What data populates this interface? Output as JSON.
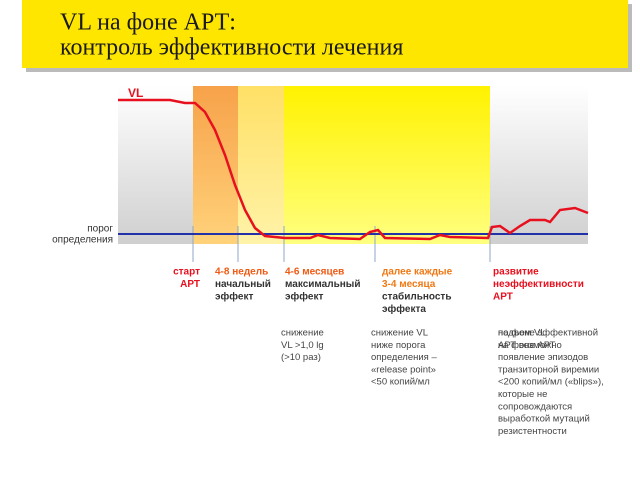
{
  "title": [
    "VL на фоне АРТ:",
    "контроль эффективности лечения"
  ],
  "chart": {
    "y_label": "VL",
    "threshold_label": [
      "порог",
      "определения"
    ]
  },
  "phases": [
    {
      "heading": [
        "старт",
        "АРТ"
      ]
    },
    {
      "heading": [
        "4-8 недель"
      ],
      "subheading": [
        "начальный",
        "эффект"
      ],
      "description": [
        "снижение",
        "VL >1,0 lg",
        "(>10 раз)"
      ]
    },
    {
      "heading": [
        "4-6 месяцев"
      ],
      "subheading": [
        "максимальный",
        "эффект"
      ],
      "description": [
        "снижение VL",
        "ниже порога",
        "определения –",
        "«release point»",
        "<50 копий/мл"
      ]
    },
    {
      "heading": [
        "далее каждые",
        "3-4 месяца"
      ],
      "subheading": [
        "стабильность",
        "эффекта"
      ],
      "description": [
        "на фоне эффективной",
        "АРТ возможно",
        "появление эпизодов",
        "транзиторной виремии",
        "<200 копий/мл («blips»),",
        "которые не",
        "сопровождаются",
        "выработкой мутаций",
        "резистентности"
      ]
    },
    {
      "heading": [
        "развитие",
        "неэффективности",
        "АРТ"
      ],
      "description": [
        "подъем VL",
        "на фоне АРТ"
      ]
    }
  ]
}
